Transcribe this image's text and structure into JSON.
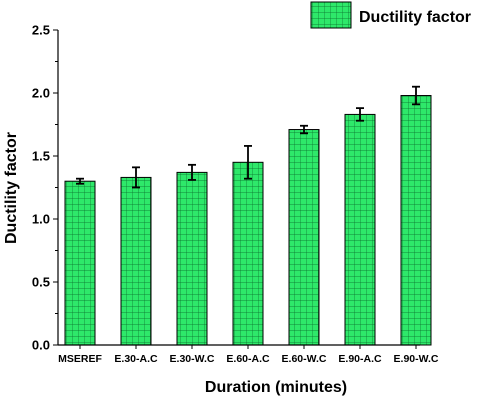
{
  "chart_data": {
    "type": "bar",
    "categories": [
      "MSEREF",
      "E.30-A.C",
      "E.30-W.C",
      "E.60-A.C",
      "E.60-W.C",
      "E.90-A.C",
      "E.90-W.C"
    ],
    "series": [
      {
        "name": "Ductility factor",
        "values": [
          1.3,
          1.33,
          1.37,
          1.45,
          1.71,
          1.83,
          1.98
        ],
        "errors": [
          0.02,
          0.08,
          0.06,
          0.13,
          0.03,
          0.05,
          0.07
        ],
        "color": "#2ee86a",
        "pattern": "grid"
      }
    ],
    "xlabel": "Duration (minutes)",
    "ylabel": "Ductility factor",
    "ylim": [
      0.0,
      2.5
    ],
    "yticks": [
      "0.0",
      "0.5",
      "1.0",
      "1.5",
      "2.0",
      "2.5"
    ],
    "grid": false,
    "legend_position": "top-right"
  }
}
